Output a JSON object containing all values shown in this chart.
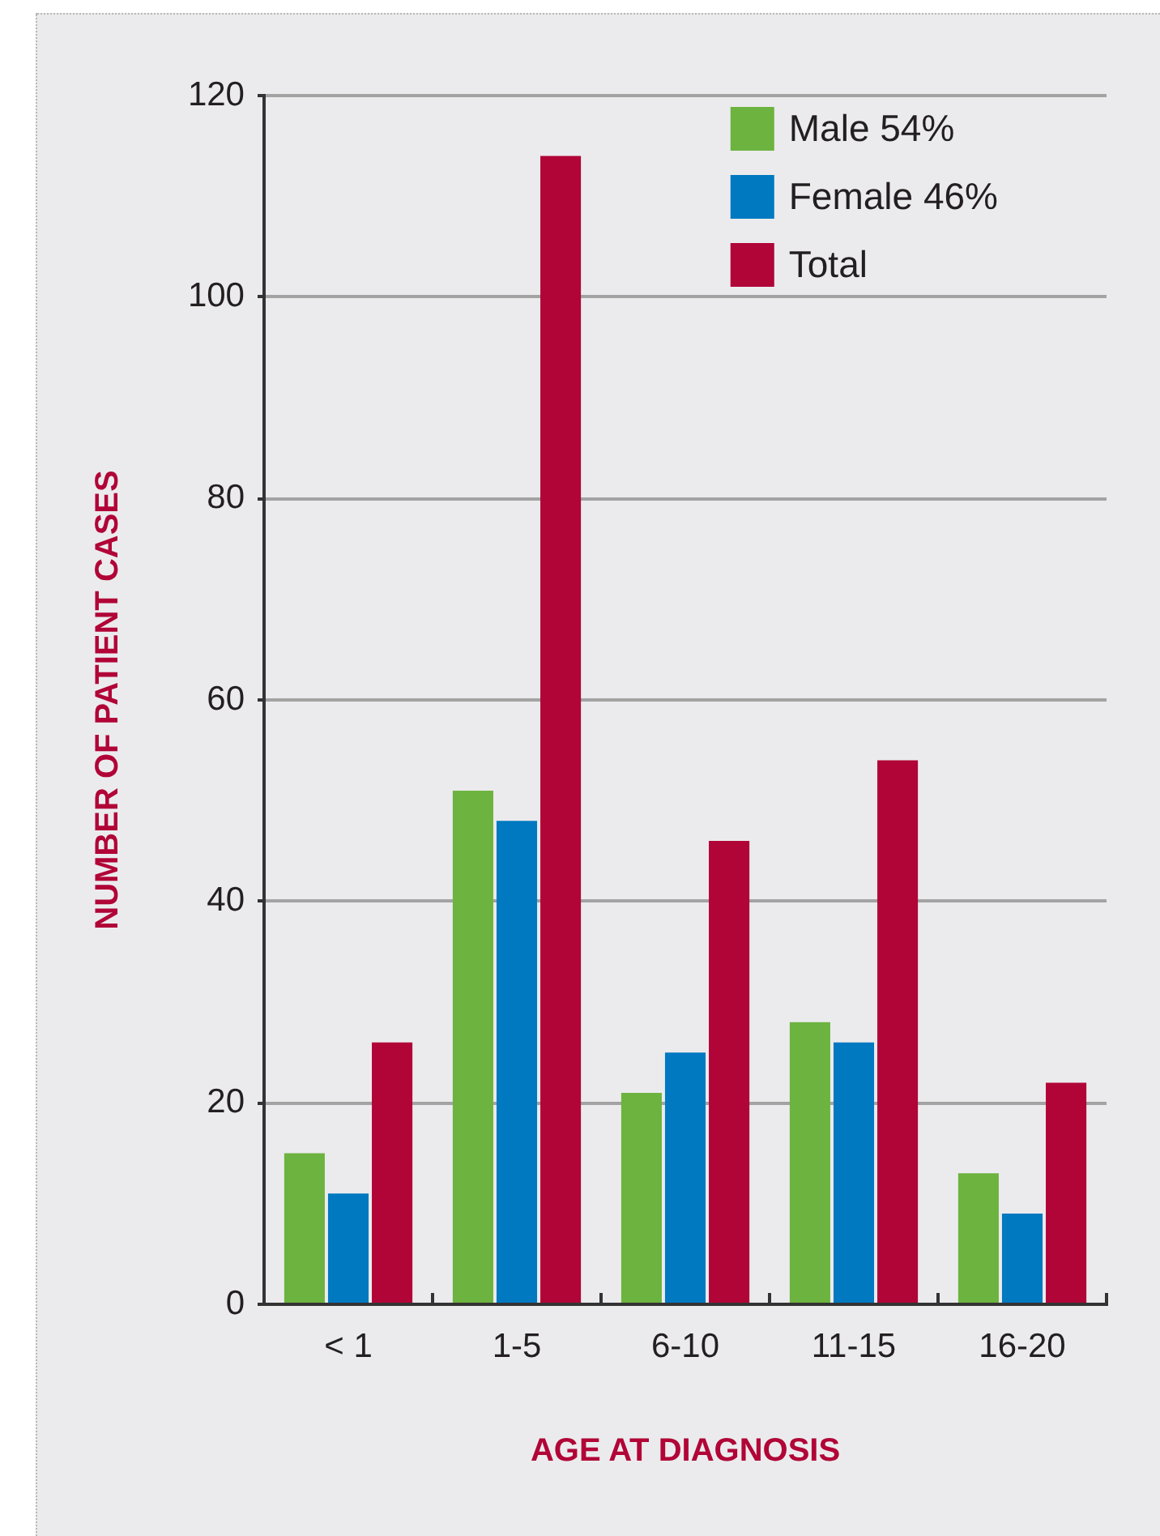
{
  "chart_data": {
    "type": "bar",
    "xlabel": "AGE AT DIAGNOSIS",
    "ylabel": "NUMBER OF PATIENT CASES",
    "categories": [
      "< 1",
      "1-5",
      "6-10",
      "11-15",
      "16-20"
    ],
    "series": [
      {
        "name": "Male 54%",
        "color": "#6db33f",
        "values": [
          15,
          51,
          21,
          28,
          13
        ]
      },
      {
        "name": "Female 46%",
        "color": "#0079c1",
        "values": [
          11,
          48,
          25,
          26,
          9
        ]
      },
      {
        "name": "Total",
        "color": "#b10437",
        "values": [
          26,
          114,
          46,
          54,
          22
        ]
      }
    ],
    "ylim": [
      0,
      120
    ],
    "yticks": [
      0,
      20,
      40,
      60,
      80,
      100,
      120
    ],
    "grid": "y",
    "legend": "top right"
  }
}
